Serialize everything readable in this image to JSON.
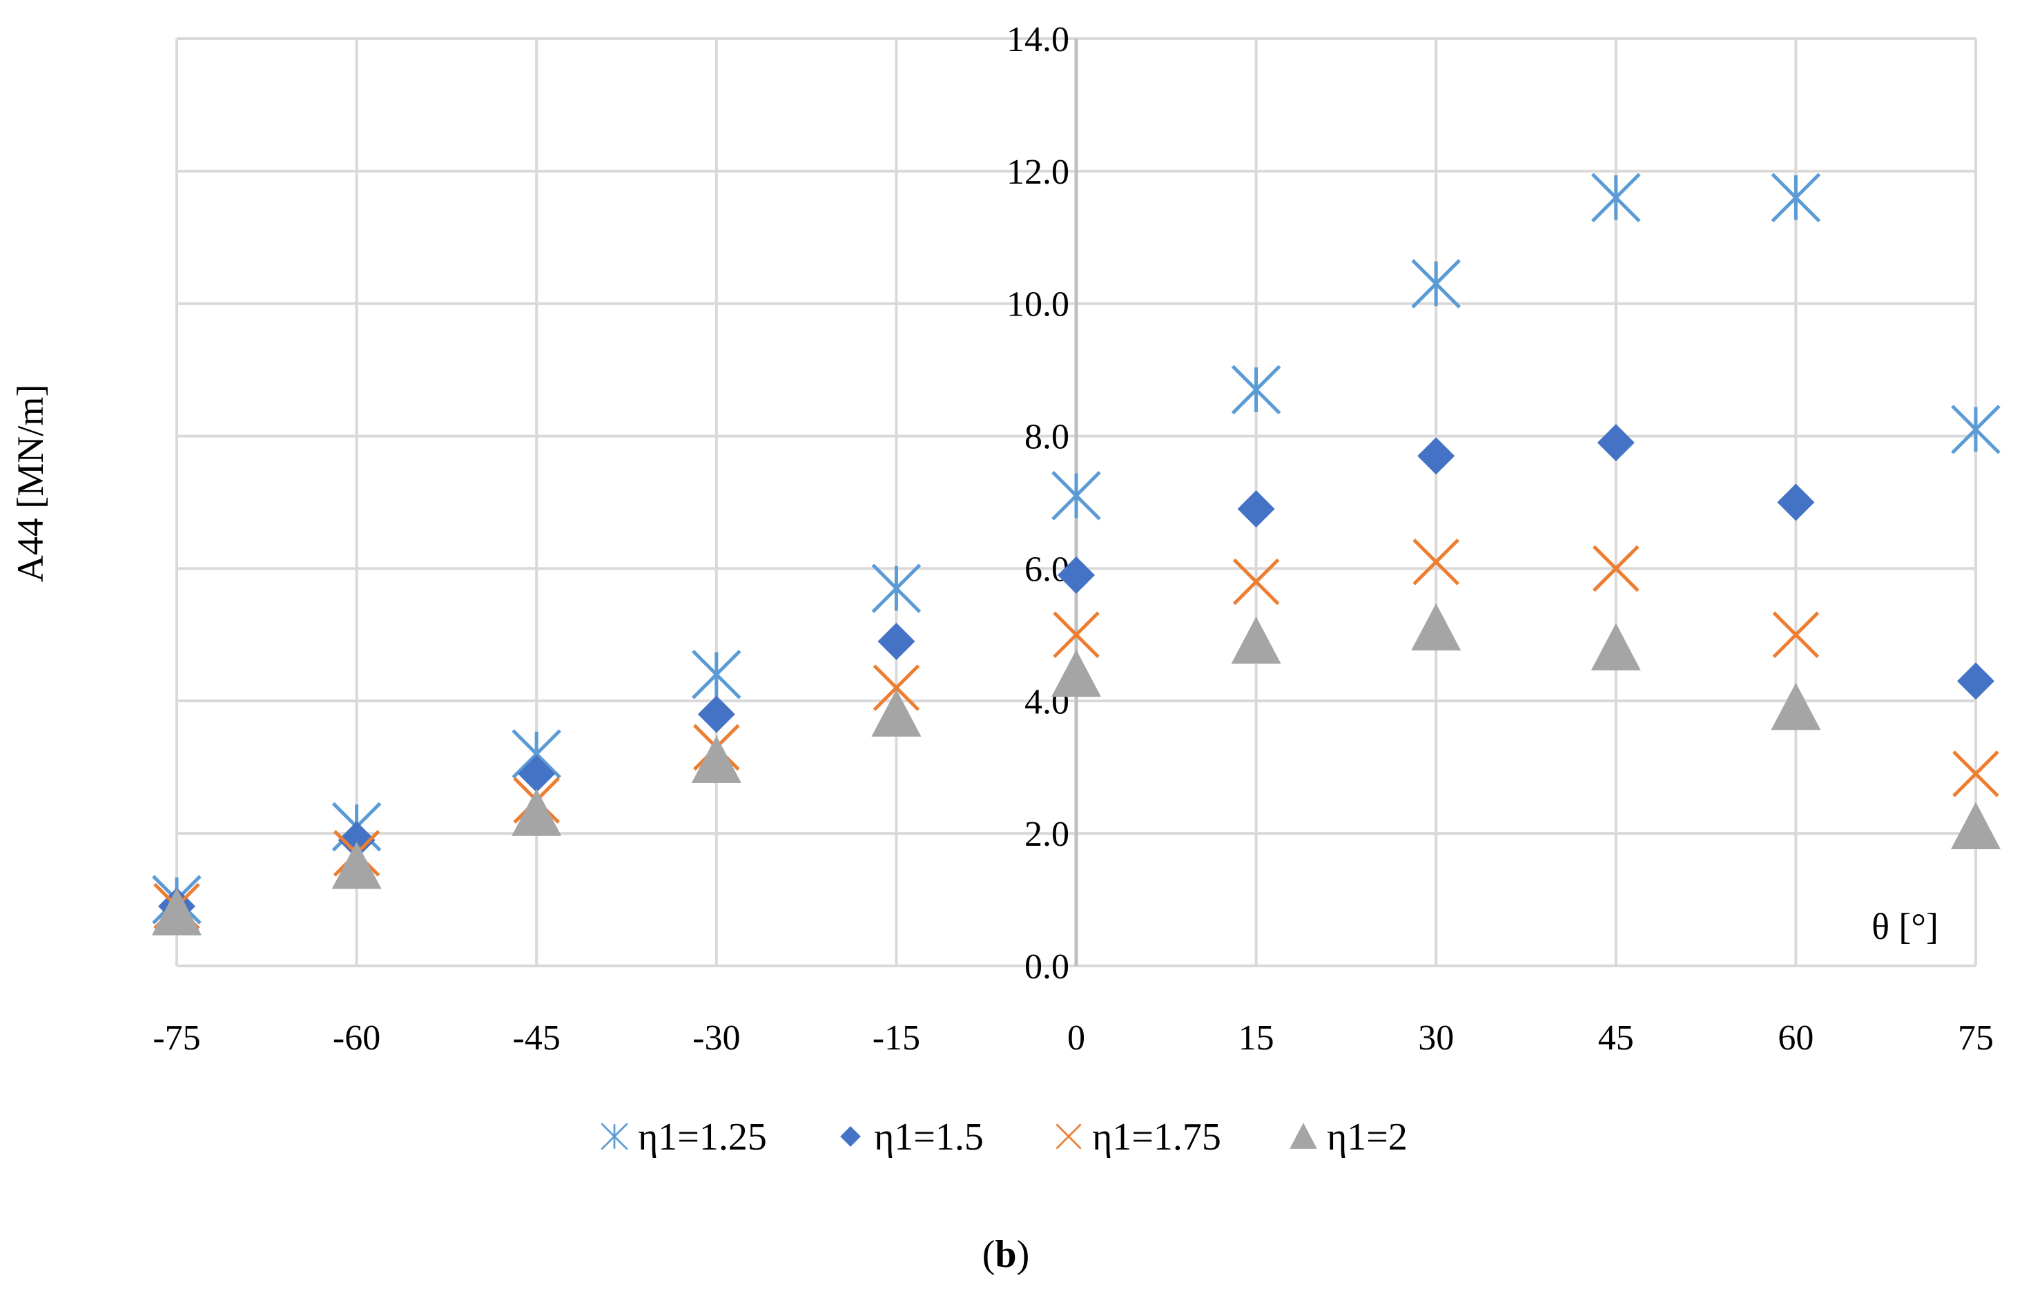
{
  "chart_data": {
    "type": "scatter",
    "title": "",
    "xlabel": "θ [°]",
    "ylabel": "A44 [MN/m]",
    "x": [
      -75,
      -60,
      -45,
      -30,
      -15,
      0,
      15,
      30,
      45,
      60,
      75
    ],
    "xlim": [
      -75,
      75
    ],
    "ylim": [
      0,
      14
    ],
    "x_ticks": [
      "-75",
      "-60",
      "-45",
      "-30",
      "-15",
      "0",
      "15",
      "30",
      "45",
      "60",
      "75"
    ],
    "y_ticks": [
      "0.0",
      "2.0",
      "4.0",
      "6.0",
      "8.0",
      "10.0",
      "12.0",
      "14.0"
    ],
    "grid": true,
    "legend_position": "bottom",
    "series": [
      {
        "name": "η1=1.25",
        "marker": "asterisk",
        "color": "#5B9BD5",
        "values": [
          1.0,
          2.1,
          3.2,
          4.4,
          5.7,
          7.1,
          8.7,
          10.3,
          11.6,
          11.6,
          8.1
        ]
      },
      {
        "name": "η1=1.5",
        "marker": "diamond",
        "color": "#4472C4",
        "values": [
          0.9,
          1.9,
          2.9,
          3.8,
          4.9,
          5.9,
          6.9,
          7.7,
          7.9,
          7.0,
          4.3
        ]
      },
      {
        "name": "η1=1.75",
        "marker": "cross",
        "color": "#ED7D31",
        "values": [
          0.9,
          1.7,
          2.5,
          3.3,
          4.2,
          5.0,
          5.8,
          6.1,
          6.0,
          5.0,
          2.9
        ]
      },
      {
        "name": "η1=2",
        "marker": "triangle",
        "color": "#A5A5A5",
        "values": [
          0.8,
          1.5,
          2.3,
          3.1,
          3.8,
          4.4,
          4.9,
          5.1,
          4.8,
          3.9,
          2.1
        ]
      }
    ]
  },
  "caption": {
    "open": "(",
    "letter": "b",
    "close": ")"
  }
}
